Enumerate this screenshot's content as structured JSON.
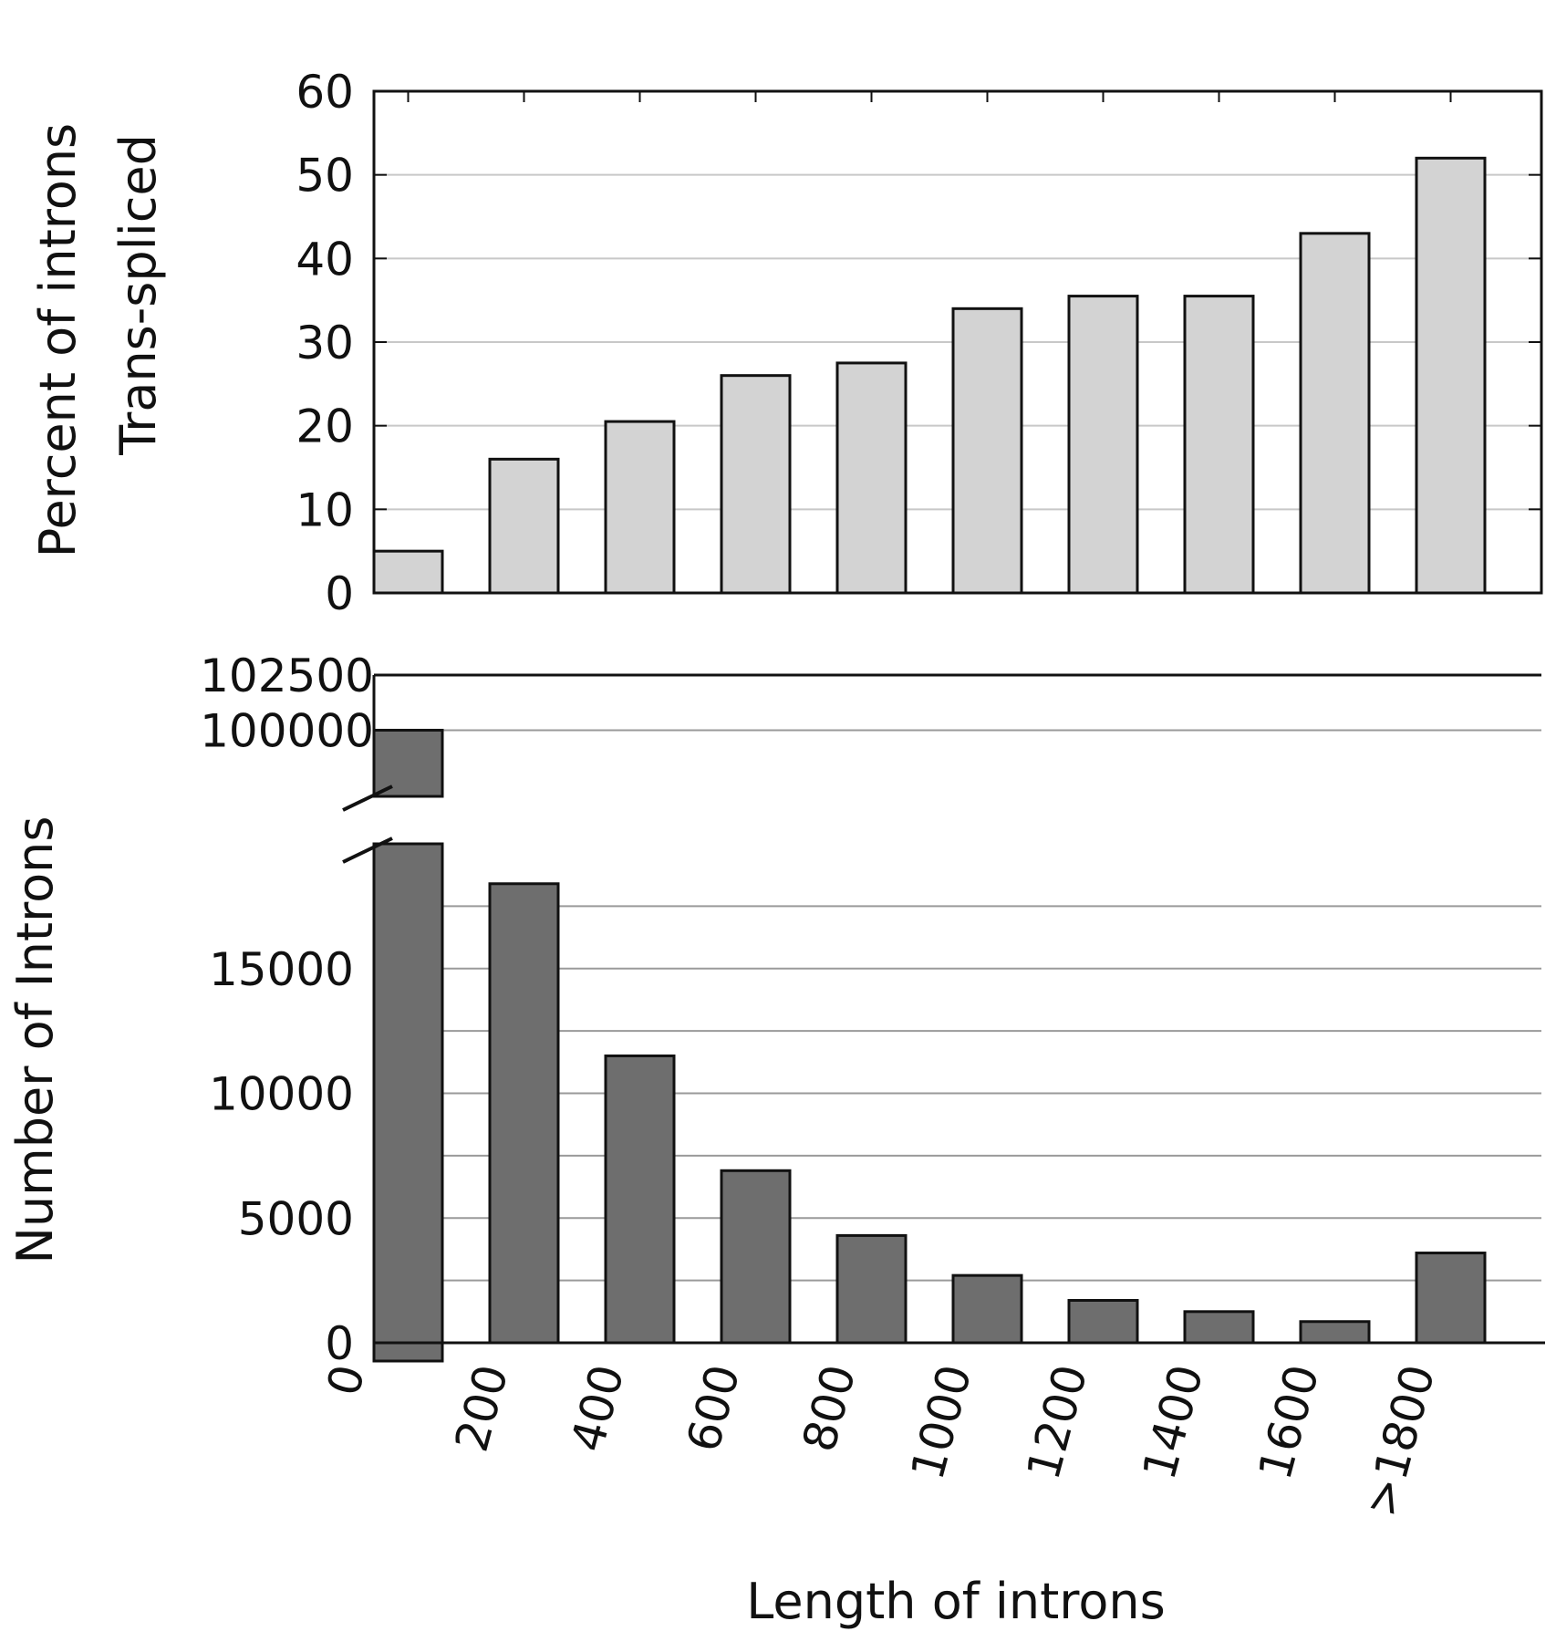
{
  "chart_data": [
    {
      "type": "bar",
      "panel": "top",
      "ylabel_line1": "Percent of introns",
      "ylabel_line2": "Trans-spliced",
      "ylim": [
        0,
        60
      ],
      "yticks": [
        0,
        10,
        20,
        30,
        40,
        50,
        60
      ],
      "grid": true,
      "bar_color": "#d3d3d3",
      "values": [
        5,
        16,
        20.5,
        26,
        27.5,
        34,
        35.5,
        35.5,
        43,
        52
      ]
    },
    {
      "type": "bar",
      "panel": "bottom",
      "ylabel": "Number of Introns",
      "xlabel": "Length of introns",
      "broken_axis": true,
      "ylim_lower": [
        0,
        20000
      ],
      "ylim_upper": [
        97000,
        102500
      ],
      "yticks_lower": [
        0,
        5000,
        10000,
        15000
      ],
      "yticks_upper": [
        100000,
        102500
      ],
      "grid": true,
      "bar_color": "#6e6e6e",
      "values": [
        100000,
        18400,
        11500,
        6900,
        4300,
        2700,
        1700,
        1250,
        850,
        3600
      ],
      "xtick_labels": [
        "0",
        "200",
        "400",
        "600",
        "800",
        "1000",
        "1200",
        "1400",
        "1600",
        ">1800"
      ]
    }
  ]
}
